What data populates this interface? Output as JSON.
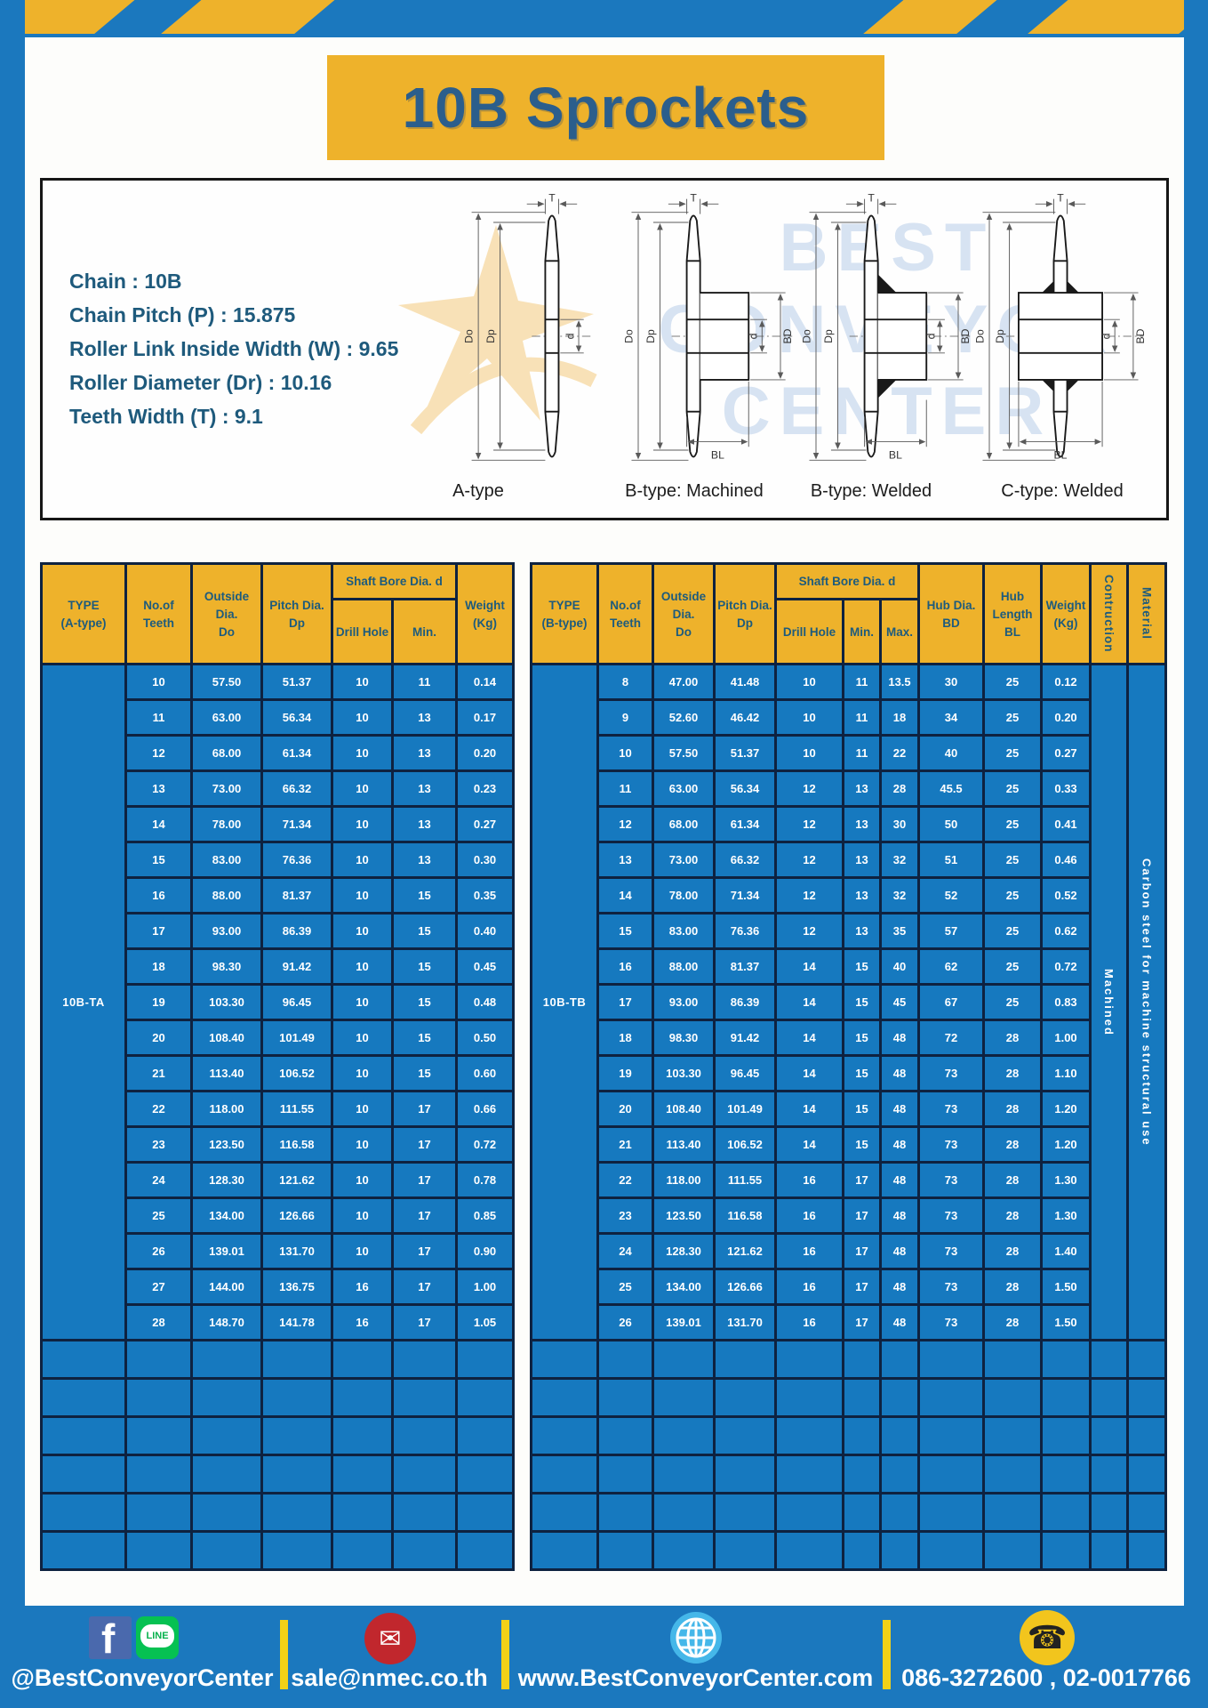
{
  "title": "10B Sprockets",
  "specs": [
    "Chain  :  10B",
    "Chain Pitch (P)  :  15.875",
    "Roller Link Inside Width (W) : 9.65",
    "Roller Diameter (Dr)  : 10.16",
    "Teeth Width (T)  :  9.1"
  ],
  "watermark": {
    "line1": "BEST",
    "line2": "CONVEYOR",
    "line3": "CENTER"
  },
  "diagram": {
    "labels": [
      "A-type",
      "B-type: Machined",
      "B-type: Welded",
      "C-type: Welded"
    ],
    "dims": {
      "t": "T",
      "do": "Do",
      "dp": "Dp",
      "d": "d",
      "bd": "BD",
      "bl": "BL"
    }
  },
  "tables": {
    "a": {
      "head": {
        "type1": "TYPE",
        "type2": "(A-type)",
        "teeth1": "No.of",
        "teeth2": "Teeth",
        "out1": "Outside",
        "out2": "Dia.",
        "out3": "Do",
        "pitch1": "Pitch Dia.",
        "pitch2": "Dp",
        "shaft": "Shaft Bore Dia. d",
        "drill": "Drill Hole",
        "min": "Min.",
        "weight1": "Weight",
        "weight2": "(Kg)"
      },
      "body": {
        "lead": "10B-TA",
        "rows": [
          [
            "10",
            "57.50",
            "51.37",
            "10",
            "11",
            "0.14"
          ],
          [
            "11",
            "63.00",
            "56.34",
            "10",
            "13",
            "0.17"
          ],
          [
            "12",
            "68.00",
            "61.34",
            "10",
            "13",
            "0.20"
          ],
          [
            "13",
            "73.00",
            "66.32",
            "10",
            "13",
            "0.23"
          ],
          [
            "14",
            "78.00",
            "71.34",
            "10",
            "13",
            "0.27"
          ],
          [
            "15",
            "83.00",
            "76.36",
            "10",
            "13",
            "0.30"
          ],
          [
            "16",
            "88.00",
            "81.37",
            "10",
            "15",
            "0.35"
          ],
          [
            "17",
            "93.00",
            "86.39",
            "10",
            "15",
            "0.40"
          ],
          [
            "18",
            "98.30",
            "91.42",
            "10",
            "15",
            "0.45"
          ],
          [
            "19",
            "103.30",
            "96.45",
            "10",
            "15",
            "0.48"
          ],
          [
            "20",
            "108.40",
            "101.49",
            "10",
            "15",
            "0.50"
          ],
          [
            "21",
            "113.40",
            "106.52",
            "10",
            "15",
            "0.60"
          ],
          [
            "22",
            "118.00",
            "111.55",
            "10",
            "17",
            "0.66"
          ],
          [
            "23",
            "123.50",
            "116.58",
            "10",
            "17",
            "0.72"
          ],
          [
            "24",
            "128.30",
            "121.62",
            "10",
            "17",
            "0.78"
          ],
          [
            "25",
            "134.00",
            "126.66",
            "10",
            "17",
            "0.85"
          ],
          [
            "26",
            "139.01",
            "131.70",
            "10",
            "17",
            "0.90"
          ],
          [
            "27",
            "144.00",
            "136.75",
            "16",
            "17",
            "1.00"
          ],
          [
            "28",
            "148.70",
            "141.78",
            "16",
            "17",
            "1.05"
          ]
        ],
        "empty_rows": 6,
        "empty_cols": 7
      }
    },
    "b": {
      "head": {
        "type1": "TYPE",
        "type2": "(B-type)",
        "teeth1": "No.of",
        "teeth2": "Teeth",
        "out1": "Outside",
        "out2": "Dia.",
        "out3": "Do",
        "pitch1": "Pitch Dia.",
        "pitch2": "Dp",
        "shaft": "Shaft Bore Dia. d",
        "drill": "Drill Hole",
        "min": "Min.",
        "max": "Max.",
        "hub1": "Hub Dia.",
        "hub2": "BD",
        "hublen1": "Hub",
        "hublen2": "Length",
        "hublen3": "BL",
        "weight1": "Weight",
        "weight2": "(Kg)",
        "constr": "Contruction",
        "mat": "Material"
      },
      "body": {
        "lead": "10B-TB",
        "rows": [
          [
            "8",
            "47.00",
            "41.48",
            "10",
            "11",
            "13.5",
            "30",
            "25",
            "0.12"
          ],
          [
            "9",
            "52.60",
            "46.42",
            "10",
            "11",
            "18",
            "34",
            "25",
            "0.20"
          ],
          [
            "10",
            "57.50",
            "51.37",
            "10",
            "11",
            "22",
            "40",
            "25",
            "0.27"
          ],
          [
            "11",
            "63.00",
            "56.34",
            "12",
            "13",
            "28",
            "45.5",
            "25",
            "0.33"
          ],
          [
            "12",
            "68.00",
            "61.34",
            "12",
            "13",
            "30",
            "50",
            "25",
            "0.41"
          ],
          [
            "13",
            "73.00",
            "66.32",
            "12",
            "13",
            "32",
            "51",
            "25",
            "0.46"
          ],
          [
            "14",
            "78.00",
            "71.34",
            "12",
            "13",
            "32",
            "52",
            "25",
            "0.52"
          ],
          [
            "15",
            "83.00",
            "76.36",
            "12",
            "13",
            "35",
            "57",
            "25",
            "0.62"
          ],
          [
            "16",
            "88.00",
            "81.37",
            "14",
            "15",
            "40",
            "62",
            "25",
            "0.72"
          ],
          [
            "17",
            "93.00",
            "86.39",
            "14",
            "15",
            "45",
            "67",
            "25",
            "0.83"
          ],
          [
            "18",
            "98.30",
            "91.42",
            "14",
            "15",
            "48",
            "72",
            "28",
            "1.00"
          ],
          [
            "19",
            "103.30",
            "96.45",
            "14",
            "15",
            "48",
            "73",
            "28",
            "1.10"
          ],
          [
            "20",
            "108.40",
            "101.49",
            "14",
            "15",
            "48",
            "73",
            "28",
            "1.20"
          ],
          [
            "21",
            "113.40",
            "106.52",
            "14",
            "15",
            "48",
            "73",
            "28",
            "1.20"
          ],
          [
            "22",
            "118.00",
            "111.55",
            "16",
            "17",
            "48",
            "73",
            "28",
            "1.30"
          ],
          [
            "23",
            "123.50",
            "116.58",
            "16",
            "17",
            "48",
            "73",
            "28",
            "1.30"
          ],
          [
            "24",
            "128.30",
            "121.62",
            "16",
            "17",
            "48",
            "73",
            "28",
            "1.40"
          ],
          [
            "25",
            "134.00",
            "126.66",
            "16",
            "17",
            "48",
            "73",
            "28",
            "1.50"
          ],
          [
            "26",
            "139.01",
            "131.70",
            "16",
            "17",
            "48",
            "73",
            "28",
            "1.50"
          ]
        ],
        "trail": [
          "Machined",
          "Carbon steel  for machine structural use"
        ],
        "empty_rows": 6,
        "empty_cols": 12
      }
    }
  },
  "footer": {
    "social_label": "@BestConveyorCenter",
    "facebook_letter": "f",
    "line_text": "LINE",
    "email_label": "sale@nmec.co.th",
    "email_glyph": "✉",
    "website_label": "www.BestConveyorCenter.com",
    "phone_label": "086-3272600 , 02-0017766",
    "phone_glyph": "☎"
  },
  "colors": {
    "frame_blue": "#1b78be",
    "accent_yellow": "#eeb22b",
    "table_blue": "#1679bf",
    "border_navy": "#0e2240",
    "header_text": "#1d5b7d",
    "title_text": "#2b5e8c",
    "divider_yellow": "#f2d117"
  }
}
